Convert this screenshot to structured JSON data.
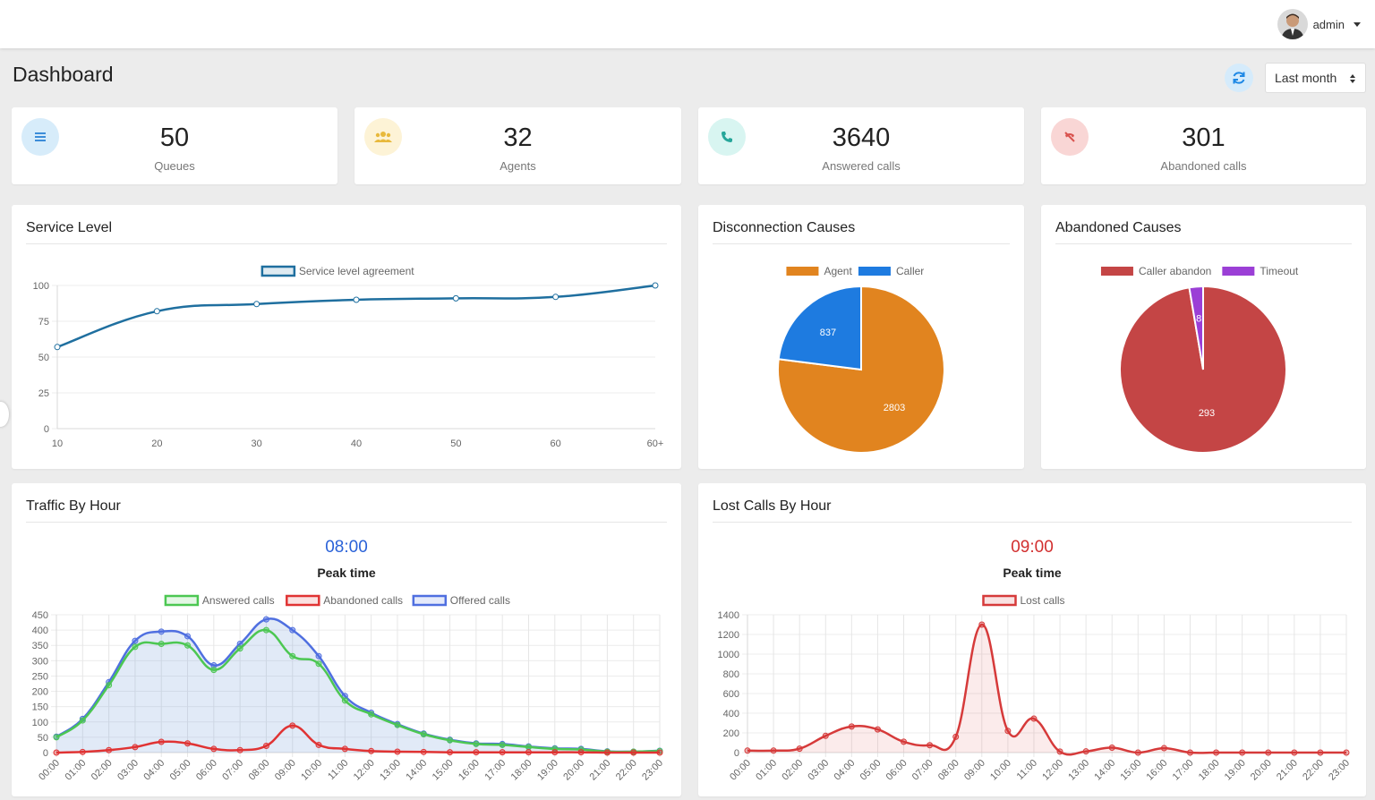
{
  "header": {
    "user_name": "admin"
  },
  "page": {
    "title": "Dashboard",
    "period_selected": "Last month"
  },
  "stats": [
    {
      "value": "50",
      "label": "Queues",
      "icon": "list-icon",
      "color": "#3c8dd9",
      "bg": "#d7ecfa"
    },
    {
      "value": "32",
      "label": "Agents",
      "icon": "users-icon",
      "color": "#e8b93c",
      "bg": "#fdf3d6"
    },
    {
      "value": "3640",
      "label": "Answered calls",
      "icon": "phone-icon",
      "color": "#26a69a",
      "bg": "#d8f5f1"
    },
    {
      "value": "301",
      "label": "Abandoned calls",
      "icon": "phone-slash-icon",
      "color": "#d9534f",
      "bg": "#f9d6d5"
    }
  ],
  "panels": {
    "service_level": {
      "title": "Service Level"
    },
    "disconnection": {
      "title": "Disconnection Causes"
    },
    "abandoned": {
      "title": "Abandoned Causes"
    },
    "traffic": {
      "title": "Traffic By Hour",
      "peak_time": "08:00",
      "peak_label": "Peak time"
    },
    "lost": {
      "title": "Lost Calls By Hour",
      "peak_time": "09:00",
      "peak_label": "Peak time"
    }
  },
  "chart_data": [
    {
      "id": "service_level",
      "type": "line",
      "categories": [
        "10",
        "20",
        "30",
        "40",
        "50",
        "60",
        "60+"
      ],
      "series": [
        {
          "name": "Service level agreement",
          "values": [
            57,
            82,
            87,
            90,
            91,
            92,
            100
          ],
          "color": "#1f6f9f"
        }
      ],
      "ylim": [
        0,
        100
      ],
      "yticks": [
        0,
        25,
        50,
        75,
        100
      ],
      "grid": true,
      "legend": "top"
    },
    {
      "id": "disconnection",
      "type": "pie",
      "labels": [
        "Agent",
        "Caller"
      ],
      "values": [
        2803,
        837
      ],
      "colors": [
        "#e1841f",
        "#1e7be0"
      ],
      "legend": "top"
    },
    {
      "id": "abandoned",
      "type": "pie",
      "labels": [
        "Caller abandon",
        "Timeout"
      ],
      "values": [
        293,
        8
      ],
      "colors": [
        "#c44545",
        "#9b3fd6"
      ],
      "legend": "top"
    },
    {
      "id": "traffic",
      "type": "area",
      "categories": [
        "00:00",
        "01:00",
        "02:00",
        "03:00",
        "04:00",
        "05:00",
        "06:00",
        "07:00",
        "08:00",
        "09:00",
        "10:00",
        "11:00",
        "12:00",
        "13:00",
        "14:00",
        "15:00",
        "16:00",
        "17:00",
        "18:00",
        "19:00",
        "20:00",
        "21:00",
        "22:00",
        "23:00"
      ],
      "series": [
        {
          "name": "Answered calls",
          "values": [
            50,
            105,
            220,
            345,
            355,
            350,
            270,
            340,
            400,
            315,
            290,
            170,
            125,
            90,
            60,
            40,
            28,
            25,
            18,
            12,
            10,
            3,
            3,
            5
          ],
          "color": "#4cc752"
        },
        {
          "name": "Abandoned calls",
          "values": [
            0,
            2,
            8,
            18,
            35,
            30,
            12,
            8,
            22,
            88,
            25,
            12,
            5,
            3,
            2,
            1,
            1,
            1,
            1,
            1,
            1,
            0,
            0,
            0
          ],
          "color": "#e03333"
        },
        {
          "name": "Offered calls",
          "values": [
            52,
            110,
            230,
            365,
            395,
            380,
            285,
            355,
            435,
            400,
            315,
            185,
            130,
            93,
            62,
            42,
            30,
            28,
            20,
            14,
            12,
            4,
            3,
            6
          ],
          "color": "#4f6fe0"
        }
      ],
      "ylim": [
        0,
        450
      ],
      "yticks": [
        0,
        50,
        100,
        150,
        200,
        250,
        300,
        350,
        400,
        450
      ],
      "grid": true,
      "legend": "top"
    },
    {
      "id": "lost",
      "type": "area",
      "categories": [
        "00:00",
        "01:00",
        "02:00",
        "03:00",
        "04:00",
        "05:00",
        "06:00",
        "07:00",
        "08:00",
        "09:00",
        "10:00",
        "11:00",
        "12:00",
        "13:00",
        "14:00",
        "15:00",
        "16:00",
        "17:00",
        "18:00",
        "19:00",
        "20:00",
        "21:00",
        "22:00",
        "23:00"
      ],
      "series": [
        {
          "name": "Lost calls",
          "values": [
            20,
            20,
            40,
            170,
            265,
            235,
            110,
            75,
            160,
            1300,
            220,
            345,
            10,
            12,
            50,
            0,
            45,
            0,
            0,
            0,
            0,
            0,
            0,
            0
          ],
          "color": "#d63a3a"
        }
      ],
      "ylim": [
        0,
        1400
      ],
      "yticks": [
        0,
        200,
        400,
        600,
        800,
        1000,
        1200,
        1400
      ],
      "grid": true,
      "legend": "top"
    }
  ]
}
